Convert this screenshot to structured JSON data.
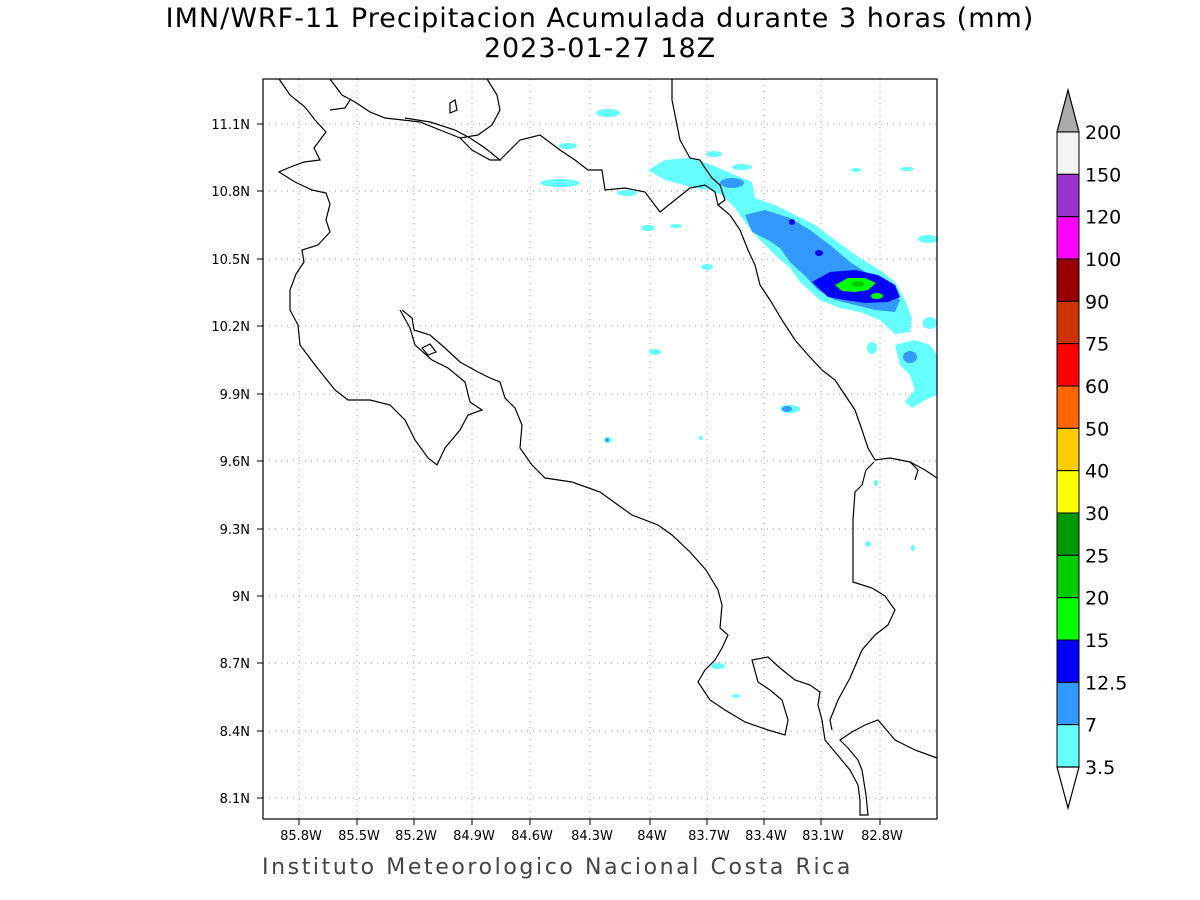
{
  "title": {
    "line1": "IMN/WRF-11 Precipitacion Acumulada durante 3 horas (mm)",
    "line2": "2023-01-27 18Z"
  },
  "footer": "Instituto Meteorologico Nacional Costa Rica",
  "map": {
    "lon_range": [
      -85.97,
      -82.8
    ],
    "lat_range": [
      8.0,
      11.3
    ],
    "lon_ticks": [
      "85.8W",
      "85.5W",
      "85.2W",
      "84.9W",
      "84.6W",
      "84.3W",
      "84W",
      "83.7W",
      "83.4W",
      "83.1W",
      "82.8W"
    ],
    "lat_ticks": [
      "11.1N",
      "10.8N",
      "10.5N",
      "10.2N",
      "9.9N",
      "9.6N",
      "9.3N",
      "9N",
      "8.7N",
      "8.4N",
      "8.1N"
    ],
    "grid": "dotted"
  },
  "colorbar": {
    "levels": [
      "200",
      "150",
      "120",
      "100",
      "90",
      "75",
      "60",
      "50",
      "40",
      "30",
      "25",
      "20",
      "15",
      "12.5",
      "7",
      "3.5"
    ],
    "colors": [
      "#f4f4f4",
      "#9933cc",
      "#ff00ff",
      "#990000",
      "#cc3300",
      "#ff0000",
      "#ff6600",
      "#ffcc00",
      "#ffff00",
      "#009900",
      "#00cc00",
      "#00ff00",
      "#0000ff",
      "#3399ff",
      "#66ffff"
    ],
    "overflow_color": "#aaaaaa"
  }
}
